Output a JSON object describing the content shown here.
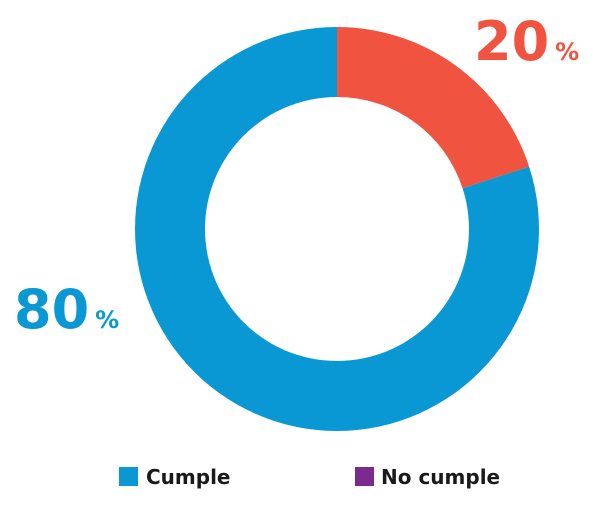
{
  "chart_data": {
    "type": "pie",
    "donut": true,
    "categories": [
      "Cumple",
      "No cumple"
    ],
    "values": [
      80,
      20
    ],
    "slices": [
      {
        "label": "Cumple",
        "value": 80,
        "color": "#0998d4"
      },
      {
        "label": "No cumple",
        "value": 20,
        "color": "#f05340"
      }
    ],
    "data_labels": [
      {
        "number": "80",
        "unit": "%",
        "color": "#0998d4"
      },
      {
        "number": "20",
        "unit": "%",
        "color": "#f05340"
      }
    ],
    "legend": {
      "placement": "bottom",
      "items": [
        {
          "label": "Cumple",
          "color": "#0998d4"
        },
        {
          "label": "No cumple",
          "color": "#7b2a8d"
        }
      ]
    }
  }
}
